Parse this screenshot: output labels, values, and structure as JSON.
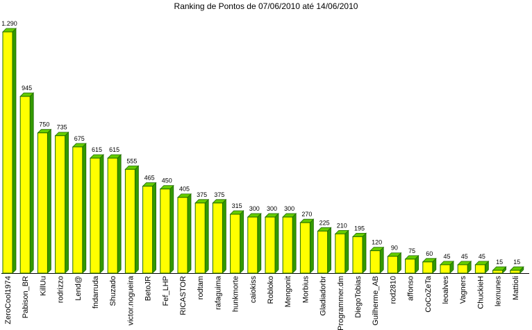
{
  "chart_data": {
    "type": "bar",
    "title": "Ranking de Pontos de 07/06/2010 até 14/06/2010",
    "xlabel": "",
    "ylabel": "",
    "ylim": [
      0,
      1290
    ],
    "grid": false,
    "legend": "none",
    "colors": {
      "bar_face": "#ffff00",
      "bar_top": "#66cc00",
      "bar_side": "#339900",
      "bar_edge": "#1f6b00",
      "axis": "#000000"
    },
    "categories": [
      "ZeroCool1974",
      "Pabison_BR",
      "KillUu",
      "rodrizzo",
      "Lend@",
      "fndarruda",
      "Shuzado",
      "victor.nogueira",
      "BetoJR",
      "Fef_LHP",
      "RICASTOR",
      "rodtam",
      "rafaguima",
      "hunkmorte",
      "caiokiss",
      "Robloko",
      "Mengonit",
      "Morbius",
      "Gladiadorbr",
      "Programmer.dm",
      "DiegoTobias",
      "Guilherme_AB",
      "rod2810",
      "affonso",
      "CoCoZeTa",
      "leoalves",
      "Vagners",
      "ChuckieH",
      "lexnunes",
      "Mattioli"
    ],
    "values": [
      1290,
      945,
      750,
      735,
      675,
      615,
      615,
      555,
      465,
      450,
      405,
      375,
      375,
      315,
      300,
      300,
      300,
      270,
      225,
      210,
      195,
      120,
      90,
      75,
      60,
      45,
      45,
      45,
      15,
      15
    ],
    "value_labels": [
      "1.290",
      "945",
      "750",
      "735",
      "675",
      "615",
      "615",
      "555",
      "465",
      "450",
      "405",
      "375",
      "375",
      "315",
      "300",
      "300",
      "300",
      "270",
      "225",
      "210",
      "195",
      "120",
      "90",
      "75",
      "60",
      "45",
      "45",
      "45",
      "15",
      "15"
    ]
  }
}
